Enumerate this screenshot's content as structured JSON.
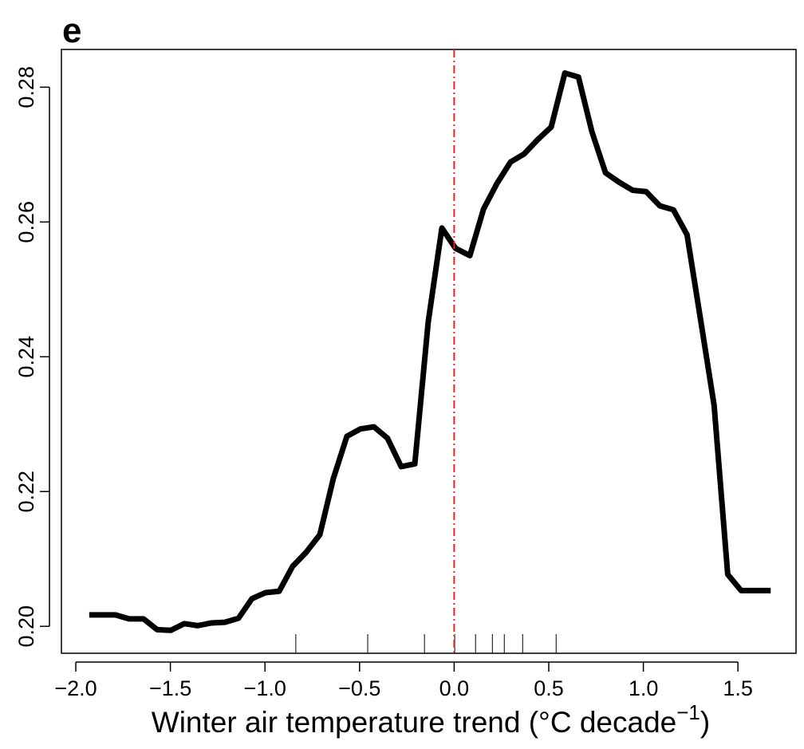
{
  "chart_data": {
    "type": "line",
    "panel_label": "e",
    "xlabel": {
      "text": "Winter air temperature trend (°C decade",
      "sup": "−1",
      "end": ")"
    },
    "x": [
      -1.929,
      -1.79,
      -1.718,
      -1.642,
      -1.57,
      -1.498,
      -1.427,
      -1.355,
      -1.284,
      -1.212,
      -1.14,
      -1.069,
      -0.997,
      -0.925,
      -0.854,
      -0.782,
      -0.71,
      -0.639,
      -0.567,
      -0.495,
      -0.424,
      -0.352,
      -0.28,
      -0.208,
      -0.137,
      -0.065,
      0.007,
      0.083,
      0.155,
      0.226,
      0.298,
      0.37,
      0.441,
      0.513,
      0.585,
      0.657,
      0.728,
      0.8,
      0.872,
      0.944,
      1.015,
      1.087,
      1.159,
      1.231,
      1.302,
      1.374,
      1.446,
      1.517,
      1.673
    ],
    "series": [
      {
        "color": "#000000",
        "values": [
          0.2017,
          0.2017,
          0.2011,
          0.2011,
          0.1995,
          0.1994,
          0.2004,
          0.2001,
          0.2005,
          0.2006,
          0.2012,
          0.2041,
          0.205,
          0.2052,
          0.2089,
          0.211,
          0.2136,
          0.2219,
          0.2282,
          0.2293,
          0.2296,
          0.2279,
          0.2237,
          0.2241,
          0.2452,
          0.2591,
          0.2561,
          0.255,
          0.2619,
          0.2657,
          0.2689,
          0.2701,
          0.2722,
          0.2741,
          0.2821,
          0.2815,
          0.2734,
          0.2673,
          0.2659,
          0.2647,
          0.2645,
          0.2624,
          0.2618,
          0.2581,
          0.2456,
          0.2328,
          0.2077,
          0.2053,
          0.2053
        ]
      }
    ],
    "rug": [
      -0.837,
      -0.457,
      -0.157,
      0.003,
      0.113,
      0.202,
      0.265,
      0.362,
      0.539
    ],
    "vline": {
      "value": 0,
      "color": "#e8211c"
    },
    "xlim": [
      -2.076,
      1.807
    ],
    "ylim": [
      0.196,
      0.2856
    ],
    "xticks": [
      {
        "value": -2,
        "label": "−2.0"
      },
      {
        "value": -1.5,
        "label": "−1.5"
      },
      {
        "value": -1,
        "label": "−1.0"
      },
      {
        "value": -0.5,
        "label": "−0.5"
      },
      {
        "value": 0,
        "label": "0.0"
      },
      {
        "value": 0.5,
        "label": "0.5"
      },
      {
        "value": 1,
        "label": "1.0"
      },
      {
        "value": 1.5,
        "label": "1.5"
      }
    ],
    "yticks": [
      {
        "value": 0.2,
        "label": "0.20"
      },
      {
        "value": 0.22,
        "label": "0.22"
      },
      {
        "value": 0.24,
        "label": "0.24"
      },
      {
        "value": 0.26,
        "label": "0.26"
      },
      {
        "value": 0.28,
        "label": "0.28"
      }
    ]
  }
}
